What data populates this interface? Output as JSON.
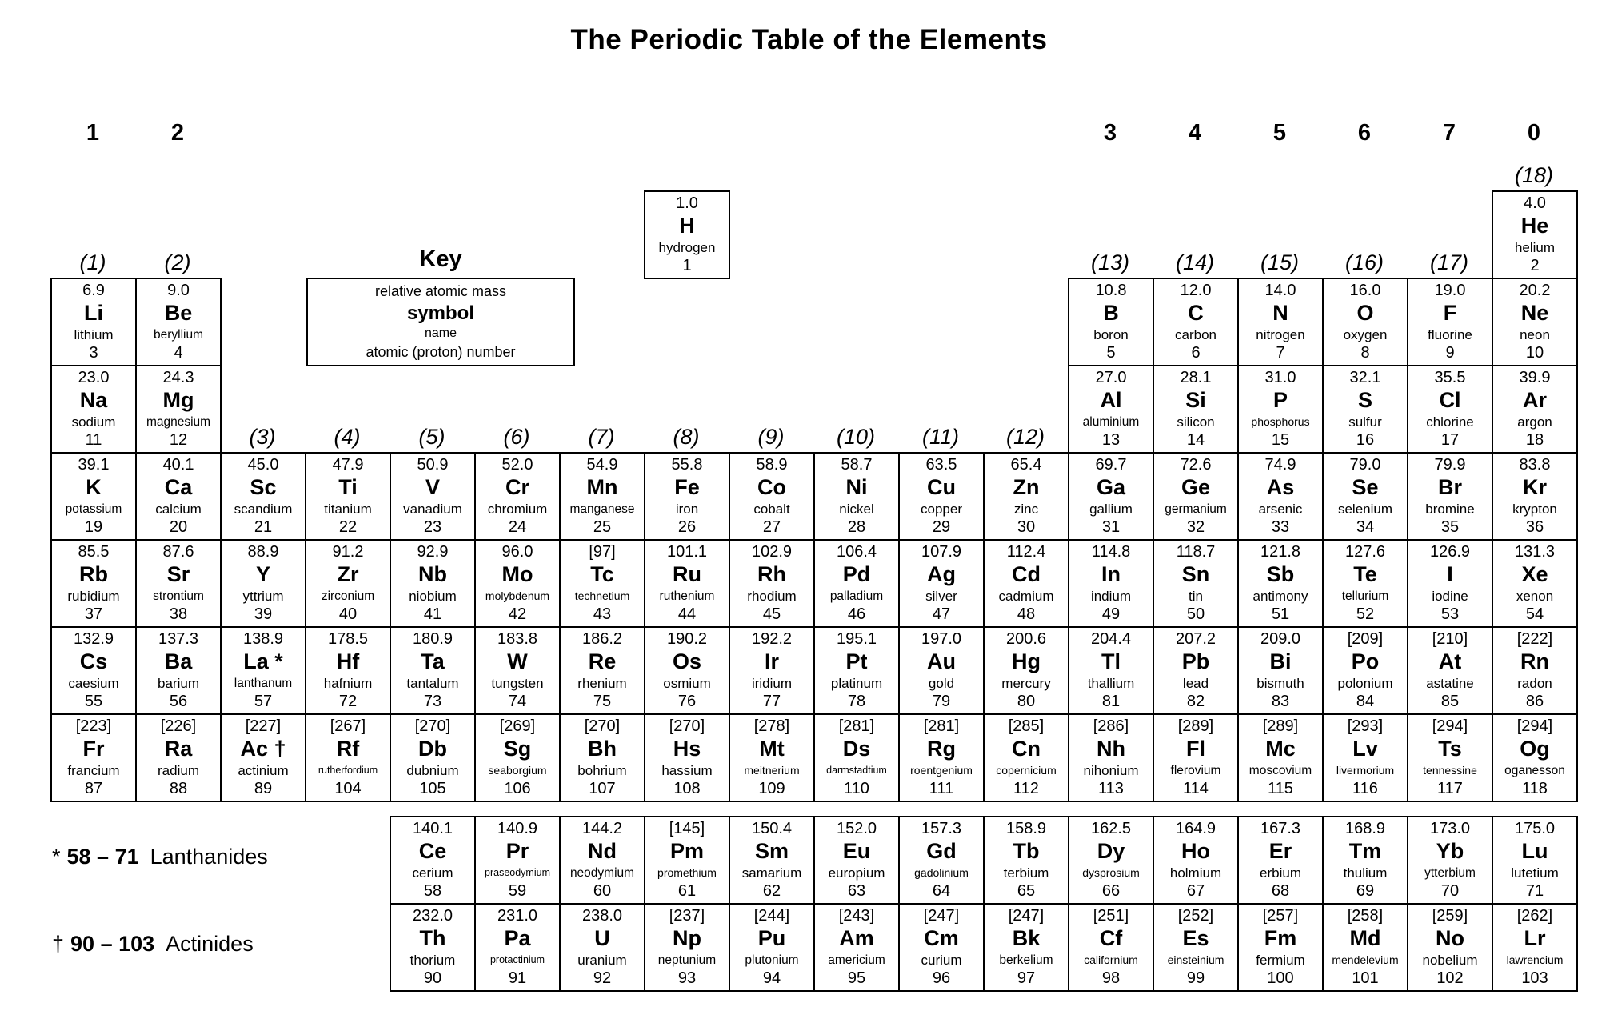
{
  "title": "The Periodic Table of the Elements",
  "key": {
    "heading": "Key",
    "lines": [
      "relative atomic mass",
      "symbol",
      "name",
      "atomic (proton) number"
    ]
  },
  "legend": {
    "lanthanides_marker": "*",
    "lanthanides_range": "58 – 71",
    "lanthanides_label": "Lanthanides",
    "actinides_marker": "†",
    "actinides_range": "90 – 103",
    "actinides_label": "Actinides"
  },
  "top_group_numbers": [
    {
      "label": "1",
      "col": 1
    },
    {
      "label": "2",
      "col": 2
    },
    {
      "label": "3",
      "col": 13
    },
    {
      "label": "4",
      "col": 14
    },
    {
      "label": "5",
      "col": 15
    },
    {
      "label": "6",
      "col": 16
    },
    {
      "label": "7",
      "col": 17
    },
    {
      "label": "0",
      "col": 18
    }
  ],
  "iupac_labels": {
    "period1": [
      {
        "label": "(18)",
        "col": 18
      }
    ],
    "period2": [
      {
        "label": "(1)",
        "col": 1
      },
      {
        "label": "(2)",
        "col": 2
      },
      {
        "label": "(13)",
        "col": 13
      },
      {
        "label": "(14)",
        "col": 14
      },
      {
        "label": "(15)",
        "col": 15
      },
      {
        "label": "(16)",
        "col": 16
      },
      {
        "label": "(17)",
        "col": 17
      }
    ],
    "period4": [
      {
        "label": "(3)",
        "col": 3
      },
      {
        "label": "(4)",
        "col": 4
      },
      {
        "label": "(5)",
        "col": 5
      },
      {
        "label": "(6)",
        "col": 6
      },
      {
        "label": "(7)",
        "col": 7
      },
      {
        "label": "(8)",
        "col": 8
      },
      {
        "label": "(9)",
        "col": 9
      },
      {
        "label": "(10)",
        "col": 10
      },
      {
        "label": "(11)",
        "col": 11
      },
      {
        "label": "(12)",
        "col": 12
      }
    ]
  },
  "elements": [
    {
      "m": "1.0",
      "s": "H",
      "n": "hydrogen",
      "z": "1",
      "r": 1,
      "c": 8
    },
    {
      "m": "4.0",
      "s": "He",
      "n": "helium",
      "z": "2",
      "r": 1,
      "c": 18
    },
    {
      "m": "6.9",
      "s": "Li",
      "n": "lithium",
      "z": "3",
      "r": 2,
      "c": 1
    },
    {
      "m": "9.0",
      "s": "Be",
      "n": "beryllium",
      "z": "4",
      "r": 2,
      "c": 2
    },
    {
      "m": "10.8",
      "s": "B",
      "n": "boron",
      "z": "5",
      "r": 2,
      "c": 13
    },
    {
      "m": "12.0",
      "s": "C",
      "n": "carbon",
      "z": "6",
      "r": 2,
      "c": 14
    },
    {
      "m": "14.0",
      "s": "N",
      "n": "nitrogen",
      "z": "7",
      "r": 2,
      "c": 15
    },
    {
      "m": "16.0",
      "s": "O",
      "n": "oxygen",
      "z": "8",
      "r": 2,
      "c": 16
    },
    {
      "m": "19.0",
      "s": "F",
      "n": "fluorine",
      "z": "9",
      "r": 2,
      "c": 17
    },
    {
      "m": "20.2",
      "s": "Ne",
      "n": "neon",
      "z": "10",
      "r": 2,
      "c": 18
    },
    {
      "m": "23.0",
      "s": "Na",
      "n": "sodium",
      "z": "11",
      "r": 3,
      "c": 1
    },
    {
      "m": "24.3",
      "s": "Mg",
      "n": "magnesium",
      "z": "12",
      "r": 3,
      "c": 2
    },
    {
      "m": "27.0",
      "s": "Al",
      "n": "aluminium",
      "z": "13",
      "r": 3,
      "c": 13
    },
    {
      "m": "28.1",
      "s": "Si",
      "n": "silicon",
      "z": "14",
      "r": 3,
      "c": 14
    },
    {
      "m": "31.0",
      "s": "P",
      "n": "phosphorus",
      "z": "15",
      "r": 3,
      "c": 15
    },
    {
      "m": "32.1",
      "s": "S",
      "n": "sulfur",
      "z": "16",
      "r": 3,
      "c": 16
    },
    {
      "m": "35.5",
      "s": "Cl",
      "n": "chlorine",
      "z": "17",
      "r": 3,
      "c": 17
    },
    {
      "m": "39.9",
      "s": "Ar",
      "n": "argon",
      "z": "18",
      "r": 3,
      "c": 18
    },
    {
      "m": "39.1",
      "s": "K",
      "n": "potassium",
      "z": "19",
      "r": 4,
      "c": 1
    },
    {
      "m": "40.1",
      "s": "Ca",
      "n": "calcium",
      "z": "20",
      "r": 4,
      "c": 2
    },
    {
      "m": "45.0",
      "s": "Sc",
      "n": "scandium",
      "z": "21",
      "r": 4,
      "c": 3
    },
    {
      "m": "47.9",
      "s": "Ti",
      "n": "titanium",
      "z": "22",
      "r": 4,
      "c": 4
    },
    {
      "m": "50.9",
      "s": "V",
      "n": "vanadium",
      "z": "23",
      "r": 4,
      "c": 5
    },
    {
      "m": "52.0",
      "s": "Cr",
      "n": "chromium",
      "z": "24",
      "r": 4,
      "c": 6
    },
    {
      "m": "54.9",
      "s": "Mn",
      "n": "manganese",
      "z": "25",
      "r": 4,
      "c": 7
    },
    {
      "m": "55.8",
      "s": "Fe",
      "n": "iron",
      "z": "26",
      "r": 4,
      "c": 8
    },
    {
      "m": "58.9",
      "s": "Co",
      "n": "cobalt",
      "z": "27",
      "r": 4,
      "c": 9
    },
    {
      "m": "58.7",
      "s": "Ni",
      "n": "nickel",
      "z": "28",
      "r": 4,
      "c": 10
    },
    {
      "m": "63.5",
      "s": "Cu",
      "n": "copper",
      "z": "29",
      "r": 4,
      "c": 11
    },
    {
      "m": "65.4",
      "s": "Zn",
      "n": "zinc",
      "z": "30",
      "r": 4,
      "c": 12
    },
    {
      "m": "69.7",
      "s": "Ga",
      "n": "gallium",
      "z": "31",
      "r": 4,
      "c": 13
    },
    {
      "m": "72.6",
      "s": "Ge",
      "n": "germanium",
      "z": "32",
      "r": 4,
      "c": 14
    },
    {
      "m": "74.9",
      "s": "As",
      "n": "arsenic",
      "z": "33",
      "r": 4,
      "c": 15
    },
    {
      "m": "79.0",
      "s": "Se",
      "n": "selenium",
      "z": "34",
      "r": 4,
      "c": 16
    },
    {
      "m": "79.9",
      "s": "Br",
      "n": "bromine",
      "z": "35",
      "r": 4,
      "c": 17
    },
    {
      "m": "83.8",
      "s": "Kr",
      "n": "krypton",
      "z": "36",
      "r": 4,
      "c": 18
    },
    {
      "m": "85.5",
      "s": "Rb",
      "n": "rubidium",
      "z": "37",
      "r": 5,
      "c": 1
    },
    {
      "m": "87.6",
      "s": "Sr",
      "n": "strontium",
      "z": "38",
      "r": 5,
      "c": 2
    },
    {
      "m": "88.9",
      "s": "Y",
      "n": "yttrium",
      "z": "39",
      "r": 5,
      "c": 3
    },
    {
      "m": "91.2",
      "s": "Zr",
      "n": "zirconium",
      "z": "40",
      "r": 5,
      "c": 4
    },
    {
      "m": "92.9",
      "s": "Nb",
      "n": "niobium",
      "z": "41",
      "r": 5,
      "c": 5
    },
    {
      "m": "96.0",
      "s": "Mo",
      "n": "molybdenum",
      "z": "42",
      "r": 5,
      "c": 6
    },
    {
      "m": "[97]",
      "s": "Tc",
      "n": "technetium",
      "z": "43",
      "r": 5,
      "c": 7
    },
    {
      "m": "101.1",
      "s": "Ru",
      "n": "ruthenium",
      "z": "44",
      "r": 5,
      "c": 8
    },
    {
      "m": "102.9",
      "s": "Rh",
      "n": "rhodium",
      "z": "45",
      "r": 5,
      "c": 9
    },
    {
      "m": "106.4",
      "s": "Pd",
      "n": "palladium",
      "z": "46",
      "r": 5,
      "c": 10
    },
    {
      "m": "107.9",
      "s": "Ag",
      "n": "silver",
      "z": "47",
      "r": 5,
      "c": 11
    },
    {
      "m": "112.4",
      "s": "Cd",
      "n": "cadmium",
      "z": "48",
      "r": 5,
      "c": 12
    },
    {
      "m": "114.8",
      "s": "In",
      "n": "indium",
      "z": "49",
      "r": 5,
      "c": 13
    },
    {
      "m": "118.7",
      "s": "Sn",
      "n": "tin",
      "z": "50",
      "r": 5,
      "c": 14
    },
    {
      "m": "121.8",
      "s": "Sb",
      "n": "antimony",
      "z": "51",
      "r": 5,
      "c": 15
    },
    {
      "m": "127.6",
      "s": "Te",
      "n": "tellurium",
      "z": "52",
      "r": 5,
      "c": 16
    },
    {
      "m": "126.9",
      "s": "I",
      "n": "iodine",
      "z": "53",
      "r": 5,
      "c": 17
    },
    {
      "m": "131.3",
      "s": "Xe",
      "n": "xenon",
      "z": "54",
      "r": 5,
      "c": 18
    },
    {
      "m": "132.9",
      "s": "Cs",
      "n": "caesium",
      "z": "55",
      "r": 6,
      "c": 1
    },
    {
      "m": "137.3",
      "s": "Ba",
      "n": "barium",
      "z": "56",
      "r": 6,
      "c": 2
    },
    {
      "m": "138.9",
      "s": "La *",
      "n": "lanthanum",
      "z": "57",
      "r": 6,
      "c": 3
    },
    {
      "m": "178.5",
      "s": "Hf",
      "n": "hafnium",
      "z": "72",
      "r": 6,
      "c": 4
    },
    {
      "m": "180.9",
      "s": "Ta",
      "n": "tantalum",
      "z": "73",
      "r": 6,
      "c": 5
    },
    {
      "m": "183.8",
      "s": "W",
      "n": "tungsten",
      "z": "74",
      "r": 6,
      "c": 6
    },
    {
      "m": "186.2",
      "s": "Re",
      "n": "rhenium",
      "z": "75",
      "r": 6,
      "c": 7
    },
    {
      "m": "190.2",
      "s": "Os",
      "n": "osmium",
      "z": "76",
      "r": 6,
      "c": 8
    },
    {
      "m": "192.2",
      "s": "Ir",
      "n": "iridium",
      "z": "77",
      "r": 6,
      "c": 9
    },
    {
      "m": "195.1",
      "s": "Pt",
      "n": "platinum",
      "z": "78",
      "r": 6,
      "c": 10
    },
    {
      "m": "197.0",
      "s": "Au",
      "n": "gold",
      "z": "79",
      "r": 6,
      "c": 11
    },
    {
      "m": "200.6",
      "s": "Hg",
      "n": "mercury",
      "z": "80",
      "r": 6,
      "c": 12
    },
    {
      "m": "204.4",
      "s": "Tl",
      "n": "thallium",
      "z": "81",
      "r": 6,
      "c": 13
    },
    {
      "m": "207.2",
      "s": "Pb",
      "n": "lead",
      "z": "82",
      "r": 6,
      "c": 14
    },
    {
      "m": "209.0",
      "s": "Bi",
      "n": "bismuth",
      "z": "83",
      "r": 6,
      "c": 15
    },
    {
      "m": "[209]",
      "s": "Po",
      "n": "polonium",
      "z": "84",
      "r": 6,
      "c": 16
    },
    {
      "m": "[210]",
      "s": "At",
      "n": "astatine",
      "z": "85",
      "r": 6,
      "c": 17
    },
    {
      "m": "[222]",
      "s": "Rn",
      "n": "radon",
      "z": "86",
      "r": 6,
      "c": 18
    },
    {
      "m": "[223]",
      "s": "Fr",
      "n": "francium",
      "z": "87",
      "r": 7,
      "c": 1
    },
    {
      "m": "[226]",
      "s": "Ra",
      "n": "radium",
      "z": "88",
      "r": 7,
      "c": 2
    },
    {
      "m": "[227]",
      "s": "Ac †",
      "n": "actinium",
      "z": "89",
      "r": 7,
      "c": 3
    },
    {
      "m": "[267]",
      "s": "Rf",
      "n": "rutherfordium",
      "z": "104",
      "r": 7,
      "c": 4
    },
    {
      "m": "[270]",
      "s": "Db",
      "n": "dubnium",
      "z": "105",
      "r": 7,
      "c": 5
    },
    {
      "m": "[269]",
      "s": "Sg",
      "n": "seaborgium",
      "z": "106",
      "r": 7,
      "c": 6
    },
    {
      "m": "[270]",
      "s": "Bh",
      "n": "bohrium",
      "z": "107",
      "r": 7,
      "c": 7
    },
    {
      "m": "[270]",
      "s": "Hs",
      "n": "hassium",
      "z": "108",
      "r": 7,
      "c": 8
    },
    {
      "m": "[278]",
      "s": "Mt",
      "n": "meitnerium",
      "z": "109",
      "r": 7,
      "c": 9
    },
    {
      "m": "[281]",
      "s": "Ds",
      "n": "darmstadtium",
      "z": "110",
      "r": 7,
      "c": 10
    },
    {
      "m": "[281]",
      "s": "Rg",
      "n": "roentgenium",
      "z": "111",
      "r": 7,
      "c": 11
    },
    {
      "m": "[285]",
      "s": "Cn",
      "n": "copernicium",
      "z": "112",
      "r": 7,
      "c": 12
    },
    {
      "m": "[286]",
      "s": "Nh",
      "n": "nihonium",
      "z": "113",
      "r": 7,
      "c": 13
    },
    {
      "m": "[289]",
      "s": "Fl",
      "n": "flerovium",
      "z": "114",
      "r": 7,
      "c": 14
    },
    {
      "m": "[289]",
      "s": "Mc",
      "n": "moscovium",
      "z": "115",
      "r": 7,
      "c": 15
    },
    {
      "m": "[293]",
      "s": "Lv",
      "n": "livermorium",
      "z": "116",
      "r": 7,
      "c": 16
    },
    {
      "m": "[294]",
      "s": "Ts",
      "n": "tennessine",
      "z": "117",
      "r": 7,
      "c": 17
    },
    {
      "m": "[294]",
      "s": "Og",
      "n": "oganesson",
      "z": "118",
      "r": 7,
      "c": 18
    }
  ],
  "lanthanides": [
    {
      "m": "140.1",
      "s": "Ce",
      "n": "cerium",
      "z": "58"
    },
    {
      "m": "140.9",
      "s": "Pr",
      "n": "praseodymium",
      "z": "59"
    },
    {
      "m": "144.2",
      "s": "Nd",
      "n": "neodymium",
      "z": "60"
    },
    {
      "m": "[145]",
      "s": "Pm",
      "n": "promethium",
      "z": "61"
    },
    {
      "m": "150.4",
      "s": "Sm",
      "n": "samarium",
      "z": "62"
    },
    {
      "m": "152.0",
      "s": "Eu",
      "n": "europium",
      "z": "63"
    },
    {
      "m": "157.3",
      "s": "Gd",
      "n": "gadolinium",
      "z": "64"
    },
    {
      "m": "158.9",
      "s": "Tb",
      "n": "terbium",
      "z": "65"
    },
    {
      "m": "162.5",
      "s": "Dy",
      "n": "dysprosium",
      "z": "66"
    },
    {
      "m": "164.9",
      "s": "Ho",
      "n": "holmium",
      "z": "67"
    },
    {
      "m": "167.3",
      "s": "Er",
      "n": "erbium",
      "z": "68"
    },
    {
      "m": "168.9",
      "s": "Tm",
      "n": "thulium",
      "z": "69"
    },
    {
      "m": "173.0",
      "s": "Yb",
      "n": "ytterbium",
      "z": "70"
    },
    {
      "m": "175.0",
      "s": "Lu",
      "n": "lutetium",
      "z": "71"
    }
  ],
  "actinides": [
    {
      "m": "232.0",
      "s": "Th",
      "n": "thorium",
      "z": "90"
    },
    {
      "m": "231.0",
      "s": "Pa",
      "n": "protactinium",
      "z": "91"
    },
    {
      "m": "238.0",
      "s": "U",
      "n": "uranium",
      "z": "92"
    },
    {
      "m": "[237]",
      "s": "Np",
      "n": "neptunium",
      "z": "93"
    },
    {
      "m": "[244]",
      "s": "Pu",
      "n": "plutonium",
      "z": "94"
    },
    {
      "m": "[243]",
      "s": "Am",
      "n": "americium",
      "z": "95"
    },
    {
      "m": "[247]",
      "s": "Cm",
      "n": "curium",
      "z": "96"
    },
    {
      "m": "[247]",
      "s": "Bk",
      "n": "berkelium",
      "z": "97"
    },
    {
      "m": "[251]",
      "s": "Cf",
      "n": "californium",
      "z": "98"
    },
    {
      "m": "[252]",
      "s": "Es",
      "n": "einsteinium",
      "z": "99"
    },
    {
      "m": "[257]",
      "s": "Fm",
      "n": "fermium",
      "z": "100"
    },
    {
      "m": "[258]",
      "s": "Md",
      "n": "mendelevium",
      "z": "101"
    },
    {
      "m": "[259]",
      "s": "No",
      "n": "nobelium",
      "z": "102"
    },
    {
      "m": "[262]",
      "s": "Lr",
      "n": "lawrencium",
      "z": "103"
    }
  ]
}
